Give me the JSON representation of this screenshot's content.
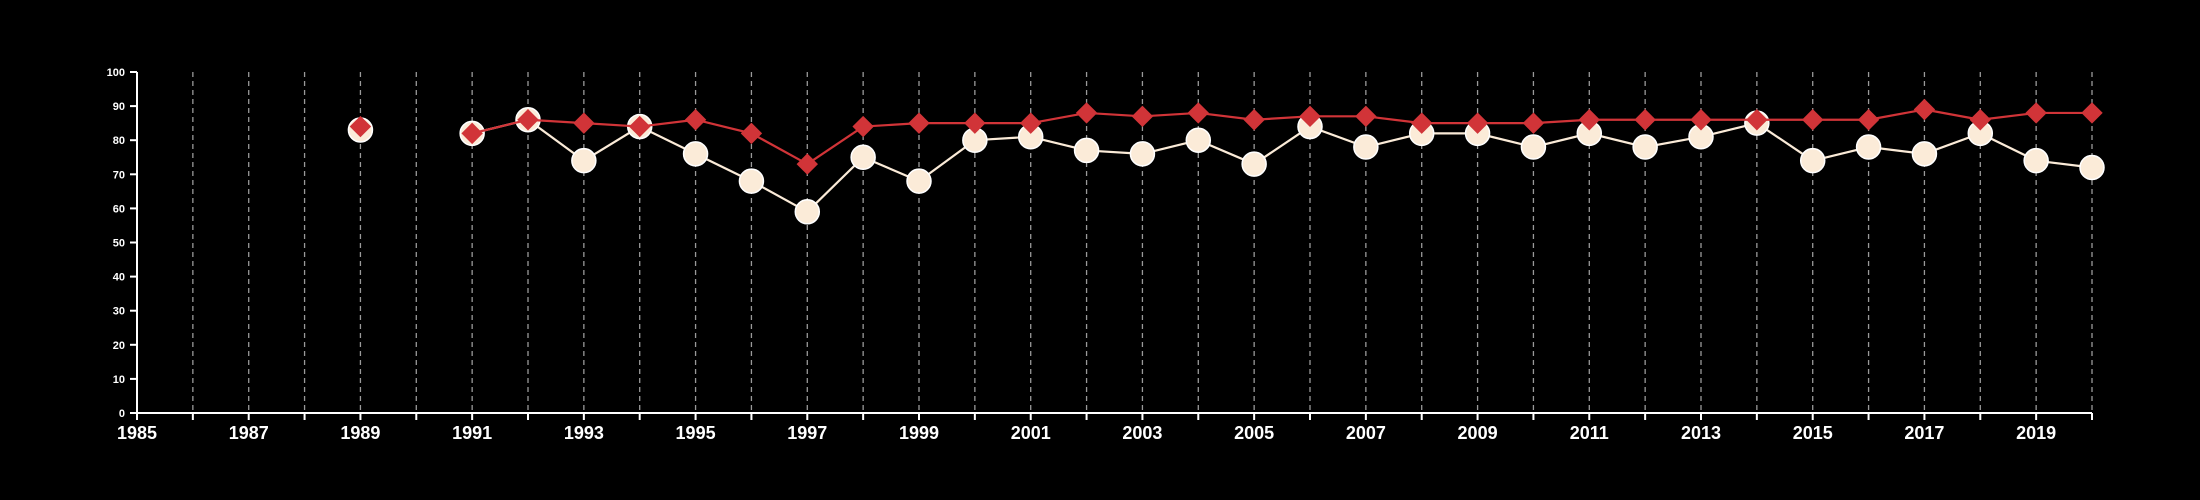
{
  "chart_data": {
    "type": "line",
    "title": "",
    "xlabel": "",
    "ylabel": "",
    "xlim": [
      1985,
      2020
    ],
    "ylim": [
      0,
      100
    ],
    "x_ticks": [
      "1985",
      "1987",
      "1989",
      "1991",
      "1993",
      "1995",
      "1997",
      "1999",
      "2001",
      "2003",
      "2005",
      "2007",
      "2009",
      "2011",
      "2013",
      "2015",
      "2017",
      "2019"
    ],
    "y_ticks": [
      "0",
      "10",
      "20",
      "30",
      "40",
      "50",
      "60",
      "70",
      "80",
      "90",
      "100"
    ],
    "grid": "vertical dashed lines at each year",
    "legend": "none",
    "series": [
      {
        "color": "#fbebd8",
        "marker": "circle",
        "points": [
          {
            "x": 1989,
            "y": 83
          },
          {
            "x": 1991,
            "y": 82
          },
          {
            "x": 1992,
            "y": 86
          },
          {
            "x": 1993,
            "y": 74
          },
          {
            "x": 1994,
            "y": 84
          },
          {
            "x": 1995,
            "y": 76
          },
          {
            "x": 1996,
            "y": 68
          },
          {
            "x": 1997,
            "y": 59
          },
          {
            "x": 1998,
            "y": 75
          },
          {
            "x": 1999,
            "y": 68
          },
          {
            "x": 2000,
            "y": 80
          },
          {
            "x": 2001,
            "y": 81
          },
          {
            "x": 2002,
            "y": 77
          },
          {
            "x": 2003,
            "y": 76
          },
          {
            "x": 2004,
            "y": 80
          },
          {
            "x": 2005,
            "y": 73
          },
          {
            "x": 2006,
            "y": 84
          },
          {
            "x": 2007,
            "y": 78
          },
          {
            "x": 2008,
            "y": 82
          },
          {
            "x": 2009,
            "y": 82
          },
          {
            "x": 2010,
            "y": 78
          },
          {
            "x": 2011,
            "y": 82
          },
          {
            "x": 2012,
            "y": 78
          },
          {
            "x": 2013,
            "y": 81
          },
          {
            "x": 2014,
            "y": 85
          },
          {
            "x": 2015,
            "y": 74
          },
          {
            "x": 2016,
            "y": 78
          },
          {
            "x": 2017,
            "y": 76
          },
          {
            "x": 2018,
            "y": 82
          },
          {
            "x": 2019,
            "y": 74
          },
          {
            "x": 2020,
            "y": 72
          }
        ]
      },
      {
        "color": "#d13438",
        "marker": "diamond",
        "points": [
          {
            "x": 1989,
            "y": 84
          },
          {
            "x": 1991,
            "y": 82
          },
          {
            "x": 1992,
            "y": 86
          },
          {
            "x": 1993,
            "y": 85
          },
          {
            "x": 1994,
            "y": 84
          },
          {
            "x": 1995,
            "y": 86
          },
          {
            "x": 1996,
            "y": 82
          },
          {
            "x": 1997,
            "y": 73
          },
          {
            "x": 1998,
            "y": 84
          },
          {
            "x": 1999,
            "y": 85
          },
          {
            "x": 2000,
            "y": 85
          },
          {
            "x": 2001,
            "y": 85
          },
          {
            "x": 2002,
            "y": 88
          },
          {
            "x": 2003,
            "y": 87
          },
          {
            "x": 2004,
            "y": 88
          },
          {
            "x": 2005,
            "y": 86
          },
          {
            "x": 2006,
            "y": 87
          },
          {
            "x": 2007,
            "y": 87
          },
          {
            "x": 2008,
            "y": 85
          },
          {
            "x": 2009,
            "y": 85
          },
          {
            "x": 2010,
            "y": 85
          },
          {
            "x": 2011,
            "y": 86
          },
          {
            "x": 2012,
            "y": 86
          },
          {
            "x": 2013,
            "y": 86
          },
          {
            "x": 2014,
            "y": 86
          },
          {
            "x": 2015,
            "y": 86
          },
          {
            "x": 2016,
            "y": 86
          },
          {
            "x": 2017,
            "y": 89
          },
          {
            "x": 2018,
            "y": 86
          },
          {
            "x": 2019,
            "y": 88
          },
          {
            "x": 2020,
            "y": 88
          }
        ]
      }
    ]
  }
}
